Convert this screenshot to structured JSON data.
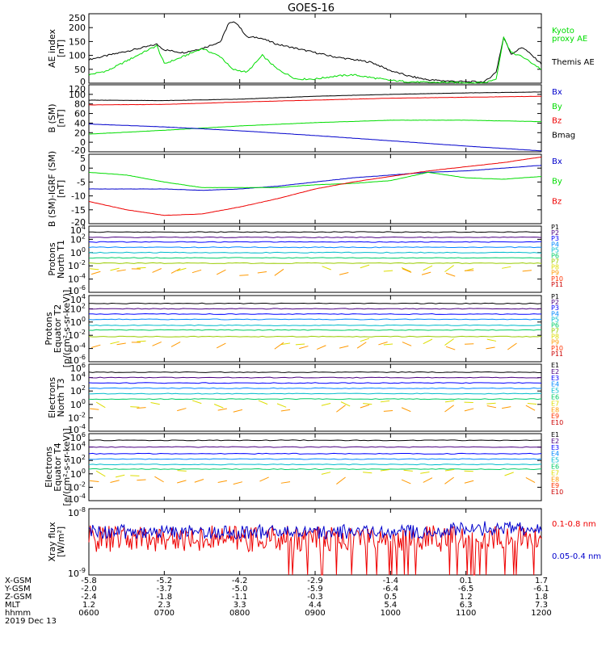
{
  "title": "GOES-16",
  "colors": {
    "black": "#000000",
    "green": "#00dd00",
    "red": "#ee0000",
    "blue": "#0000cc",
    "P1": "#000000",
    "P2": "#4b0082",
    "P3": "#0000ff",
    "P4": "#0088ff",
    "P5": "#00bbcc",
    "P6": "#00cc66",
    "P7": "#99cc00",
    "P8": "#dddd00",
    "P9": "#ff9900",
    "P10": "#ff3300",
    "P11": "#cc0000",
    "E1": "#000000",
    "E2": "#4b0082",
    "E3": "#0000ff",
    "E4": "#0088ff",
    "E5": "#00bbcc",
    "E6": "#00cc66",
    "E7": "#dddd00",
    "E8": "#ff9900",
    "E9": "#ff3300",
    "E10": "#cc0000"
  },
  "chart_data": [
    {
      "type": "line",
      "ylabel": [
        "AE index",
        "[nT]"
      ],
      "ylim": [
        0,
        250
      ],
      "yticks": [
        "250",
        "200",
        "150",
        "100",
        "50",
        "0"
      ],
      "legend": [
        {
          "name": "Kyoto",
          "color": "green"
        },
        {
          "name": "proxy AE",
          "color": "green"
        },
        {
          "name": "Themis AE",
          "color": "black"
        }
      ],
      "series": [
        {
          "name": "Themis AE",
          "color": "black",
          "x": [
            6.0,
            6.25,
            6.5,
            6.75,
            6.9,
            7.0,
            7.25,
            7.5,
            7.75,
            7.85,
            7.95,
            8.1,
            8.25,
            8.5,
            8.75,
            9.0,
            9.25,
            9.5,
            9.75,
            10.0,
            10.25,
            10.5,
            10.75,
            11.0,
            11.25,
            11.4,
            11.5,
            11.6,
            11.75,
            12.0
          ],
          "y": [
            85,
            100,
            115,
            130,
            140,
            120,
            110,
            125,
            150,
            215,
            220,
            165,
            165,
            140,
            125,
            110,
            95,
            85,
            75,
            45,
            25,
            12,
            8,
            5,
            5,
            40,
            165,
            105,
            130,
            70
          ]
        },
        {
          "name": "Kyoto proxy AE",
          "color": "green",
          "x": [
            6.0,
            6.25,
            6.5,
            6.75,
            6.9,
            7.0,
            7.2,
            7.5,
            7.75,
            7.9,
            8.1,
            8.3,
            8.5,
            8.75,
            9.0,
            9.25,
            9.5,
            9.75,
            10.0,
            10.25,
            10.5,
            10.75,
            11.0,
            11.25,
            11.4,
            11.5,
            11.6,
            11.75,
            12.0
          ],
          "y": [
            30,
            45,
            80,
            115,
            135,
            70,
            90,
            125,
            95,
            50,
            40,
            100,
            50,
            15,
            15,
            25,
            30,
            20,
            10,
            5,
            3,
            3,
            2,
            2,
            15,
            165,
            110,
            95,
            50
          ]
        }
      ]
    },
    {
      "type": "line",
      "ylabel": [
        "B (SM)",
        "[nT]"
      ],
      "ylim": [
        -20,
        120
      ],
      "yticks": [
        "120",
        "100",
        "80",
        "60",
        "40",
        "20",
        "0",
        "-20"
      ],
      "legend": [
        {
          "name": "Bx",
          "color": "blue"
        },
        {
          "name": "By",
          "color": "green"
        },
        {
          "name": "Bz",
          "color": "red"
        },
        {
          "name": "Bmag",
          "color": "black"
        }
      ],
      "series": [
        {
          "name": "Bmag",
          "color": "black",
          "x": [
            6.0,
            7.0,
            8.0,
            9.0,
            10.0,
            11.0,
            12.0
          ],
          "y": [
            88,
            87,
            90,
            96,
            100,
            103,
            105
          ]
        },
        {
          "name": "Bz",
          "color": "red",
          "x": [
            6.0,
            7.0,
            8.0,
            9.0,
            10.0,
            11.0,
            12.0
          ],
          "y": [
            78,
            79,
            84,
            88,
            92,
            94,
            96
          ]
        },
        {
          "name": "By",
          "color": "green",
          "x": [
            6.0,
            7.0,
            8.0,
            9.0,
            10.0,
            11.0,
            12.0
          ],
          "y": [
            17,
            25,
            34,
            41,
            46,
            46,
            43
          ]
        },
        {
          "name": "Bx",
          "color": "blue",
          "x": [
            6.0,
            7.0,
            8.0,
            9.0,
            10.0,
            11.0,
            12.0
          ],
          "y": [
            38,
            32,
            24,
            14,
            3,
            -8,
            -18
          ]
        }
      ]
    },
    {
      "type": "line",
      "ylabel": [
        "B (SM)-IGRF (SM)",
        "[nT]"
      ],
      "ylim": [
        -20,
        5
      ],
      "yticks": [
        "5",
        "0",
        "-5",
        "-10",
        "-15",
        "-20"
      ],
      "legend": [
        {
          "name": "Bx",
          "color": "blue"
        },
        {
          "name": "By",
          "color": "green"
        },
        {
          "name": "Bz",
          "color": "red"
        }
      ],
      "series": [
        {
          "name": "Bx",
          "color": "blue",
          "x": [
            6.0,
            6.5,
            7.0,
            7.5,
            8.0,
            8.5,
            9.0,
            9.5,
            10.0,
            10.5,
            11.0,
            11.5,
            12.0
          ],
          "y": [
            -7.5,
            -7.5,
            -7.5,
            -8,
            -7.5,
            -6.5,
            -5,
            -3.5,
            -2.5,
            -1.5,
            -1,
            0,
            1
          ]
        },
        {
          "name": "By",
          "color": "green",
          "x": [
            6.0,
            6.5,
            7.0,
            7.5,
            8.0,
            8.5,
            9.0,
            9.5,
            10.0,
            10.5,
            11.0,
            11.5,
            12.0
          ],
          "y": [
            -1.5,
            -2.5,
            -5,
            -7,
            -7,
            -7,
            -6,
            -5.5,
            -4.5,
            -1.5,
            -3.5,
            -4,
            -3
          ]
        },
        {
          "name": "Bz",
          "color": "red",
          "x": [
            6.0,
            6.5,
            7.0,
            7.5,
            8.0,
            8.5,
            9.0,
            9.5,
            10.0,
            10.5,
            11.0,
            11.5,
            12.0
          ],
          "y": [
            -12,
            -15,
            -17,
            -16.5,
            -14,
            -11,
            -7.5,
            -5,
            -3,
            -1,
            0.5,
            2,
            4
          ]
        }
      ]
    },
    {
      "type": "line",
      "ylabel": [
        "Protons",
        "North T1"
      ],
      "ylim_log": [
        -6,
        4
      ],
      "yticks_exp": [
        4,
        2,
        0,
        -2,
        -4,
        -6
      ],
      "channels": [
        "P1",
        "P2",
        "P3",
        "P4",
        "P5",
        "P6",
        "P7",
        "P8",
        "P9",
        "P10",
        "P11"
      ],
      "levels_log10": [
        3.1,
        2.3,
        1.6,
        0.8,
        0.0,
        -0.8,
        -1.6,
        -2.4,
        -3.0,
        -4.0,
        -5.0
      ]
    },
    {
      "type": "line",
      "ylabel": [
        "Protons",
        "Equator T2",
        "[p/(cm²-s-sr-keV)]"
      ],
      "ylim_log": [
        -6,
        4
      ],
      "yticks_exp": [
        4,
        2,
        0,
        -2,
        -4,
        -6
      ],
      "channels": [
        "P1",
        "P2",
        "P3",
        "P4",
        "P5",
        "P6",
        "P7",
        "P8",
        "P9",
        "P10",
        "P11"
      ],
      "levels_log10": [
        2.8,
        2.0,
        1.2,
        0.4,
        -0.5,
        -1.2,
        -2.2,
        -3.0,
        -3.6,
        -4.5,
        -5.5
      ]
    },
    {
      "type": "line",
      "ylabel": [
        "Electrons",
        "North T3"
      ],
      "ylim_log": [
        -4,
        6
      ],
      "yticks_exp": [
        6,
        4,
        2,
        0,
        -2,
        -4
      ],
      "channels": [
        "E1",
        "E2",
        "E3",
        "E4",
        "E5",
        "E6",
        "E7",
        "E8",
        "E9",
        "E10"
      ],
      "levels_log10": [
        4.8,
        4.0,
        3.2,
        2.4,
        1.6,
        0.8,
        0.0,
        -0.6,
        -1.8,
        -3.0
      ]
    },
    {
      "type": "line",
      "ylabel": [
        "Electrons",
        "Equator T4",
        "[e/(cm²-s-sr-keV)]"
      ],
      "ylim_log": [
        -4,
        6
      ],
      "yticks_exp": [
        6,
        4,
        2,
        0,
        -2,
        -4
      ],
      "channels": [
        "E1",
        "E2",
        "E3",
        "E4",
        "E5",
        "E6",
        "E7",
        "E8",
        "E9",
        "E10"
      ],
      "levels_log10": [
        5.0,
        4.0,
        3.0,
        2.2,
        1.4,
        0.7,
        0.1,
        -1.0,
        -1.8,
        -3.0
      ]
    },
    {
      "type": "line",
      "ylabel": [
        "Xray flux",
        "[W/m²]"
      ],
      "ylim_log": [
        -9,
        -8
      ],
      "yticks_exp": [
        -8,
        -9
      ],
      "legend": [
        {
          "name": "0.1-0.8 nm",
          "color": "red"
        },
        {
          "name": "0.05-0.4 nm",
          "color": "blue"
        }
      ]
    }
  ],
  "xaxis": {
    "row_labels": [
      "X-GSM",
      "Y-GSM",
      "Z-GSM",
      "MLT",
      "hhmm"
    ],
    "columns": [
      [
        "-5.8",
        "-2.0",
        "-2.4",
        "1.2",
        "0600"
      ],
      [
        "-5.2",
        "-3.7",
        "-1.8",
        "2.3",
        "0700"
      ],
      [
        "-4.2",
        "-5.0",
        "-1.1",
        "3.3",
        "0800"
      ],
      [
        "-2.9",
        "-5.9",
        "-0.3",
        "4.4",
        "0900"
      ],
      [
        "-1.4",
        "-6.4",
        "0.5",
        "5.4",
        "1000"
      ],
      [
        "0.1",
        "-6.5",
        "1.2",
        "6.3",
        "1100"
      ],
      [
        "1.7",
        "-6.1",
        "1.8",
        "7.3",
        "1200"
      ]
    ],
    "date": "2019 Dec 13"
  }
}
